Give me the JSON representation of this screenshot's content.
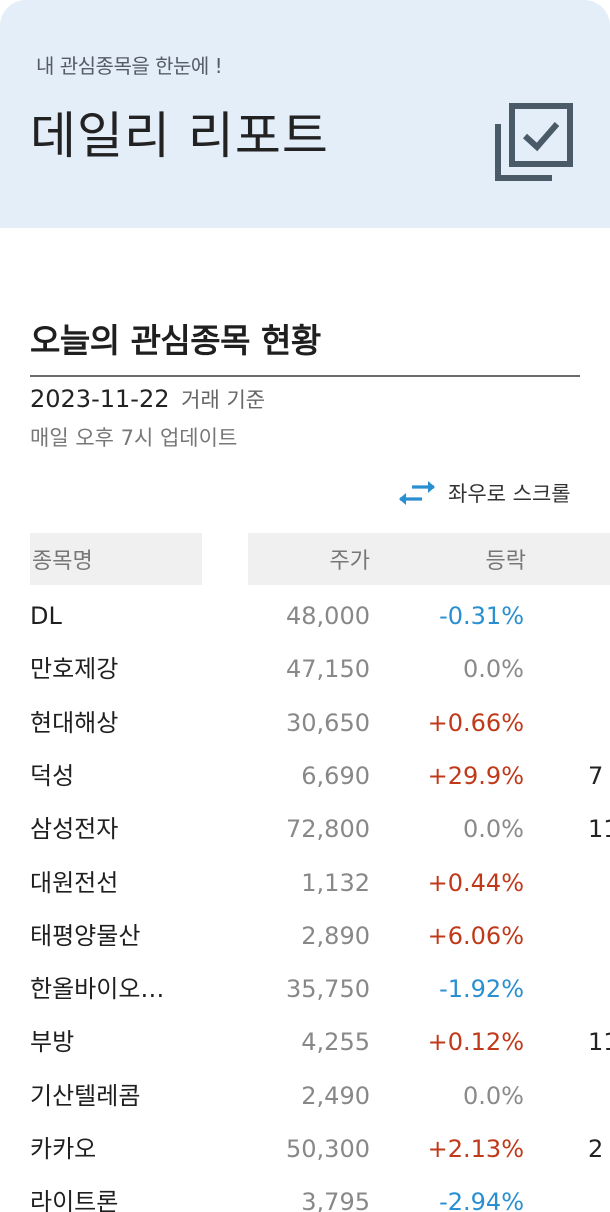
{
  "header": {
    "subtitle": "내 관심종목을 한눈에 !",
    "title": "데일리 리포트",
    "icon": "check-stack-icon",
    "background_color": "#e3eef9"
  },
  "section": {
    "title": "오늘의 관심종목 현황",
    "date": "2023-11-22",
    "date_basis": "거래 기준",
    "update_note": "매일 오후 7시 업데이트"
  },
  "scroll_hint": {
    "icon": "swap-arrows-icon",
    "label": "좌우로 스크롤"
  },
  "table": {
    "headers": {
      "name": "종목명",
      "price": "주가",
      "change": "등락"
    },
    "rows": [
      {
        "name": "DL",
        "price": "48,000",
        "change": "-0.31%",
        "dir": "down",
        "extra": ""
      },
      {
        "name": "만호제강",
        "price": "47,150",
        "change": "0.0%",
        "dir": "flat",
        "extra": ""
      },
      {
        "name": "현대해상",
        "price": "30,650",
        "change": "+0.66%",
        "dir": "up",
        "extra": ""
      },
      {
        "name": "덕성",
        "price": "6,690",
        "change": "+29.9%",
        "dir": "up",
        "extra": "7"
      },
      {
        "name": "삼성전자",
        "price": "72,800",
        "change": "0.0%",
        "dir": "flat",
        "extra": "11"
      },
      {
        "name": "대원전선",
        "price": "1,132",
        "change": "+0.44%",
        "dir": "up",
        "extra": ""
      },
      {
        "name": "태평양물산",
        "price": "2,890",
        "change": "+6.06%",
        "dir": "up",
        "extra": ""
      },
      {
        "name": "한올바이오…",
        "price": "35,750",
        "change": "-1.92%",
        "dir": "down",
        "extra": ""
      },
      {
        "name": "부방",
        "price": "4,255",
        "change": "+0.12%",
        "dir": "up",
        "extra": "11"
      },
      {
        "name": "기산텔레콤",
        "price": "2,490",
        "change": "0.0%",
        "dir": "flat",
        "extra": ""
      },
      {
        "name": "카카오",
        "price": "50,300",
        "change": "+2.13%",
        "dir": "up",
        "extra": "2"
      },
      {
        "name": "라이트론",
        "price": "3,795",
        "change": "-2.94%",
        "dir": "down",
        "extra": ""
      }
    ]
  },
  "colors": {
    "up": "#c03a1a",
    "down": "#2a8fd0",
    "flat": "#8a8a8a",
    "icon": "#4a5a66"
  }
}
